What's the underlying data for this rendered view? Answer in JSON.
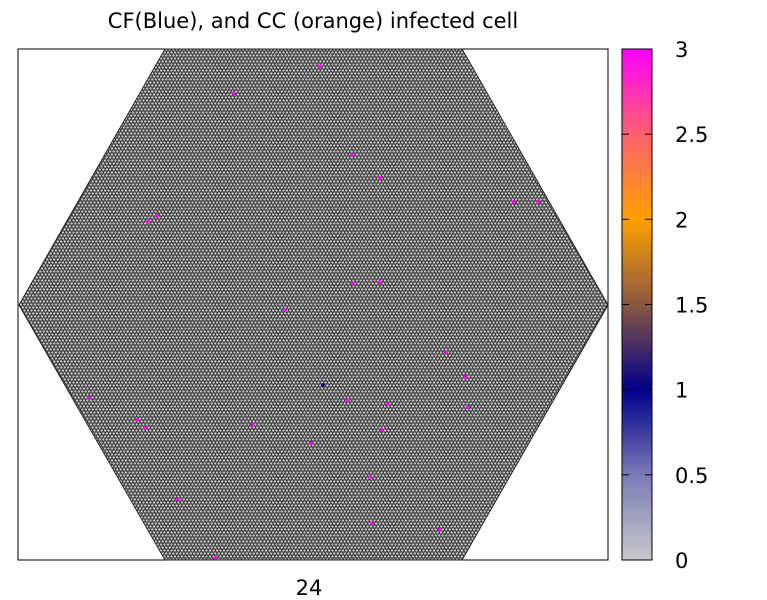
{
  "chart_data": {
    "type": "heatmap",
    "title": "CF(Blue), and CC (orange) infected cell",
    "xlabel": "24",
    "ylabel": "",
    "grid_units": "hexagonal cell index",
    "xlim": [
      0,
      168.6
    ],
    "ylim": [
      0,
      146
    ],
    "background_value": 0,
    "colorbar": {
      "range": [
        0,
        3
      ],
      "ticks": [
        "0",
        "0.5",
        "1",
        "1.5",
        "2",
        "2.5",
        "3"
      ],
      "tick_values": [
        0,
        0.5,
        1,
        1.5,
        2,
        2.5,
        3
      ],
      "colors": [
        "#c8c8c8",
        "#7a7ab8",
        "#00008c",
        "#8a5840",
        "#ffa000",
        "#ff6070",
        "#ff00ff"
      ],
      "placement": "right"
    },
    "infected_cells": [
      {
        "x": 86.3,
        "y": 4.9,
        "value": 3
      },
      {
        "x": 61.7,
        "y": 12.6,
        "value": 3
      },
      {
        "x": 95.4,
        "y": 30.3,
        "value": 3
      },
      {
        "x": 103.4,
        "y": 36.9,
        "value": 3
      },
      {
        "x": 141.7,
        "y": 43.7,
        "value": 3
      },
      {
        "x": 148.6,
        "y": 43.7,
        "value": 3
      },
      {
        "x": 39.7,
        "y": 47.7,
        "value": 3
      },
      {
        "x": 37.1,
        "y": 49.4,
        "value": 3
      },
      {
        "x": 95.7,
        "y": 66.9,
        "value": 3
      },
      {
        "x": 103.4,
        "y": 66.6,
        "value": 3
      },
      {
        "x": 76.3,
        "y": 74.6,
        "value": 3
      },
      {
        "x": 122.3,
        "y": 86.6,
        "value": 3
      },
      {
        "x": 128.0,
        "y": 93.7,
        "value": 3
      },
      {
        "x": 87.1,
        "y": 96.0,
        "value": 1
      },
      {
        "x": 94.3,
        "y": 100.3,
        "value": 3
      },
      {
        "x": 105.7,
        "y": 101.4,
        "value": 3
      },
      {
        "x": 128.6,
        "y": 102.3,
        "value": 3
      },
      {
        "x": 20.3,
        "y": 99.7,
        "value": 3
      },
      {
        "x": 34.0,
        "y": 106.0,
        "value": 3
      },
      {
        "x": 36.3,
        "y": 108.3,
        "value": 3
      },
      {
        "x": 67.1,
        "y": 107.4,
        "value": 3
      },
      {
        "x": 104.0,
        "y": 108.9,
        "value": 3
      },
      {
        "x": 84.0,
        "y": 112.6,
        "value": 3
      },
      {
        "x": 100.6,
        "y": 122.3,
        "value": 3
      },
      {
        "x": 45.7,
        "y": 128.6,
        "value": 3
      },
      {
        "x": 101.1,
        "y": 135.4,
        "value": 3
      },
      {
        "x": 120.6,
        "y": 137.4,
        "value": 3
      },
      {
        "x": 56.6,
        "y": 145.4,
        "value": 3
      }
    ]
  }
}
